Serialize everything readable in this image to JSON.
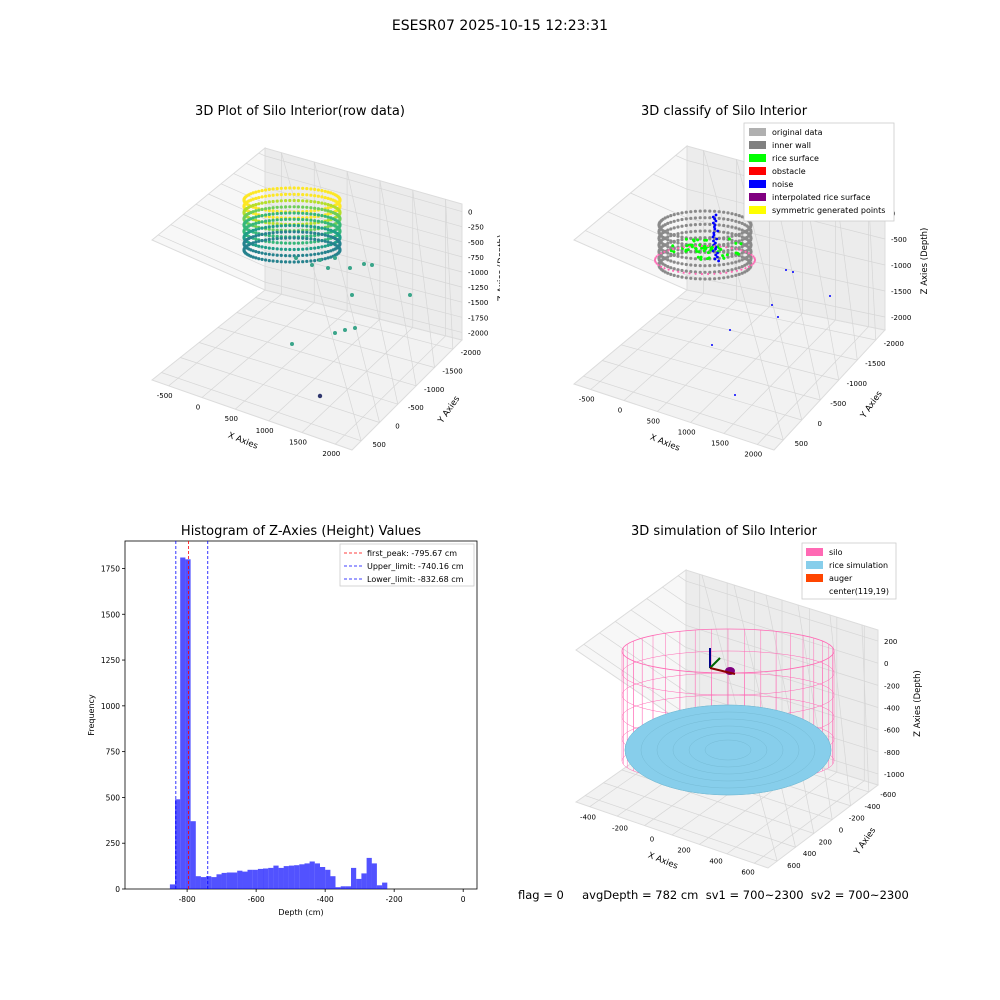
{
  "figure": {
    "suptitle": "ESESR07 2025-10-15 12:23:31"
  },
  "panels": {
    "raw": {
      "title": "3D Plot of Silo Interior(row data)",
      "xlabel": "X Axies",
      "ylabel": "Y Axies",
      "zlabel": "Z Axies (Depth)",
      "xticks": [
        "-500",
        "0",
        "500",
        "1000",
        "1500",
        "2000"
      ],
      "yticks": [
        "500",
        "0",
        "-500",
        "-1000",
        "-1500",
        "-2000"
      ],
      "zticks": [
        "0",
        "-250",
        "-500",
        "-750",
        "-1000",
        "-1250",
        "-1500",
        "-1750",
        "-2000"
      ]
    },
    "classify": {
      "title": "3D classify of Silo Interior",
      "xlabel": "X Axies",
      "ylabel": "Y Axies",
      "zlabel": "Z Axies (Depth)",
      "xticks": [
        "-500",
        "0",
        "500",
        "1000",
        "1500",
        "2000"
      ],
      "yticks": [
        "500",
        "0",
        "-500",
        "-1000",
        "-1500",
        "-2000"
      ],
      "zticks": [
        "0",
        "-500",
        "-1000",
        "-1500",
        "-2000"
      ],
      "legend": [
        {
          "label": "original data",
          "color": "#b0b0b0"
        },
        {
          "label": "inner wall",
          "color": "#808080"
        },
        {
          "label": "rice surface",
          "color": "#00ff00"
        },
        {
          "label": "obstacle",
          "color": "#ff0000"
        },
        {
          "label": "noise",
          "color": "#0000ff"
        },
        {
          "label": "interpolated rice surface",
          "color": "#800080"
        },
        {
          "label": "symmetric generated points",
          "color": "#ffff00"
        }
      ]
    },
    "simulation": {
      "title": "3D simulation of Silo Interior",
      "xlabel": "X Axies",
      "ylabel": "Y Axies",
      "zlabel": "Z Axies (Depth)",
      "xticks": [
        "-400",
        "-200",
        "0",
        "200",
        "400",
        "600"
      ],
      "yticks": [
        "600",
        "400",
        "200",
        "0",
        "-200",
        "-400",
        "-600"
      ],
      "zticks": [
        "200",
        "0",
        "-200",
        "-400",
        "-600",
        "-800",
        "-1000"
      ],
      "legend": [
        {
          "label": "silo",
          "color": "#ff69b4"
        },
        {
          "label": "rice simulation",
          "color": "#87ceeb"
        },
        {
          "label": "auger",
          "color": "#ff4500"
        },
        {
          "label": "center(119,19)",
          "color": "#ffffff"
        }
      ]
    }
  },
  "chart_data": {
    "type": "bar",
    "title": "Histogram of Z-Axies (Height) Values",
    "xlabel": "Depth (cm)",
    "ylabel": "Frequency",
    "xlim": [
      -980,
      40
    ],
    "ylim": [
      0,
      1900
    ],
    "xticks": [
      -800,
      -600,
      -400,
      -200,
      0
    ],
    "yticks": [
      0,
      250,
      500,
      750,
      1000,
      1250,
      1500,
      1750
    ],
    "bar_color": "#0000ff",
    "bin_width": 15,
    "bins": [
      {
        "x": -850,
        "v": 25
      },
      {
        "x": -835,
        "v": 490
      },
      {
        "x": -820,
        "v": 1810
      },
      {
        "x": -805,
        "v": 1800
      },
      {
        "x": -790,
        "v": 370
      },
      {
        "x": -775,
        "v": 70
      },
      {
        "x": -760,
        "v": 65
      },
      {
        "x": -745,
        "v": 70
      },
      {
        "x": -730,
        "v": 65
      },
      {
        "x": -715,
        "v": 80
      },
      {
        "x": -700,
        "v": 88
      },
      {
        "x": -685,
        "v": 90
      },
      {
        "x": -670,
        "v": 90
      },
      {
        "x": -655,
        "v": 100
      },
      {
        "x": -640,
        "v": 95
      },
      {
        "x": -625,
        "v": 105
      },
      {
        "x": -610,
        "v": 105
      },
      {
        "x": -595,
        "v": 110
      },
      {
        "x": -580,
        "v": 112
      },
      {
        "x": -565,
        "v": 115
      },
      {
        "x": -550,
        "v": 128
      },
      {
        "x": -535,
        "v": 115
      },
      {
        "x": -520,
        "v": 125
      },
      {
        "x": -505,
        "v": 128
      },
      {
        "x": -490,
        "v": 130
      },
      {
        "x": -475,
        "v": 135
      },
      {
        "x": -460,
        "v": 140
      },
      {
        "x": -445,
        "v": 150
      },
      {
        "x": -430,
        "v": 140
      },
      {
        "x": -415,
        "v": 120
      },
      {
        "x": -400,
        "v": 105
      },
      {
        "x": -385,
        "v": 70
      },
      {
        "x": -370,
        "v": 10
      },
      {
        "x": -355,
        "v": 15
      },
      {
        "x": -340,
        "v": 15
      },
      {
        "x": -325,
        "v": 115
      },
      {
        "x": -310,
        "v": 55
      },
      {
        "x": -295,
        "v": 85
      },
      {
        "x": -280,
        "v": 170
      },
      {
        "x": -265,
        "v": 140
      },
      {
        "x": -250,
        "v": 20
      },
      {
        "x": -235,
        "v": 35
      }
    ],
    "lines": [
      {
        "label": "first_peak: -795.67 cm",
        "x": -795.67,
        "color": "#ff0000"
      },
      {
        "label": "Upper_limit: -740.16 cm",
        "x": -740.16,
        "color": "#0000ff"
      },
      {
        "label": "Lower_limit: -832.68 cm",
        "x": -832.68,
        "color": "#0000ff"
      }
    ]
  },
  "footer": {
    "text": "flag = 0     avgDepth = 782 cm  sv1 = 700~2300  sv2 = 700~2300"
  }
}
